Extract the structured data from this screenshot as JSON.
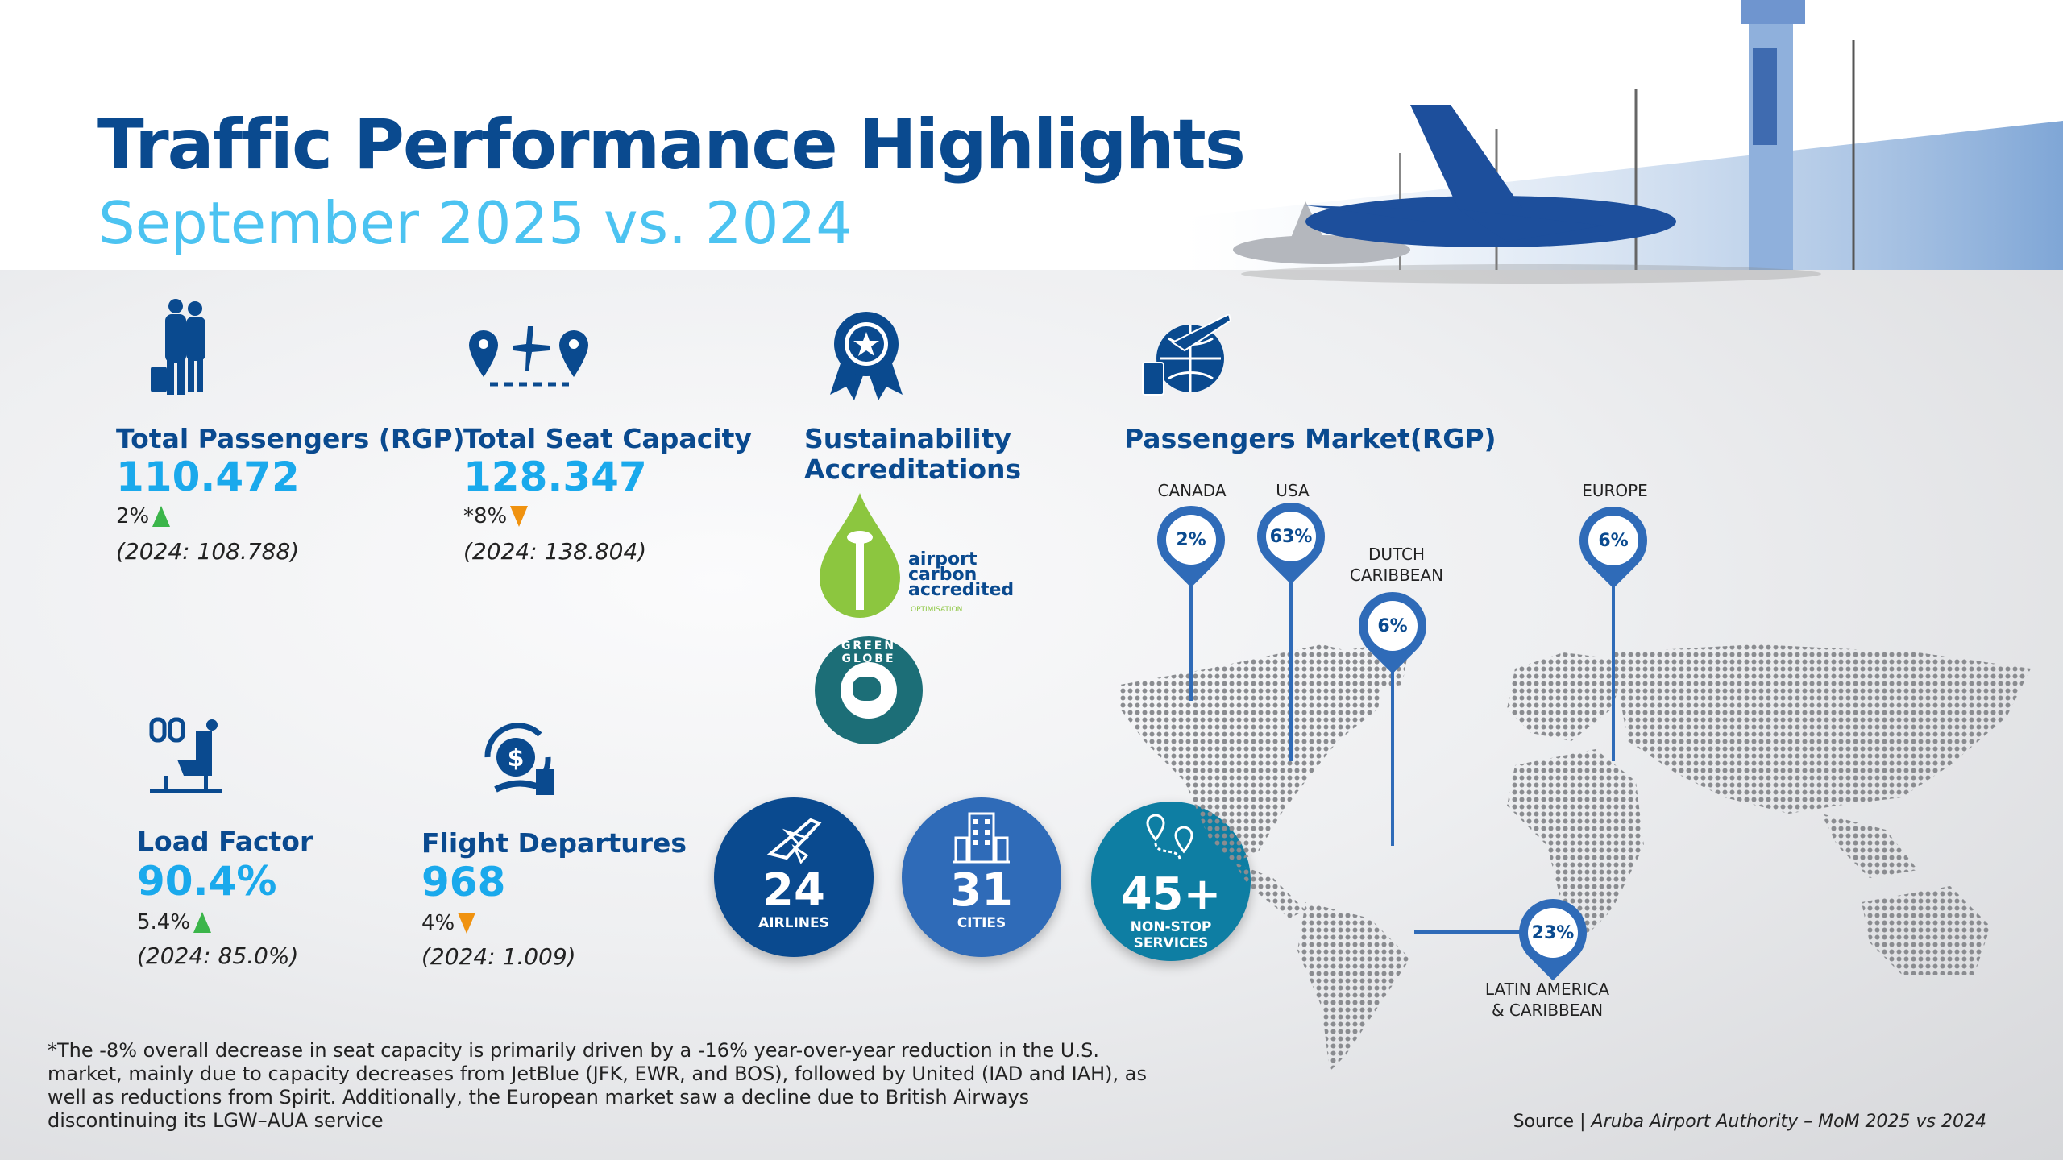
{
  "header": {
    "title": "Traffic Performance Highlights",
    "subtitle": "September 2025 vs. 2024"
  },
  "kpis": {
    "passengers": {
      "label": "Total Passengers (RGP)",
      "value": "110.472",
      "change": "2%",
      "trend": "up",
      "previous": "(2024: 108.788)",
      "icon": "travelers-icon"
    },
    "seats": {
      "label": "Total Seat Capacity",
      "value": "128.347",
      "change": "*8%",
      "trend": "down",
      "previous": "(2024: 138.804)",
      "icon": "route-plane-icon"
    },
    "load_factor": {
      "label": "Load Factor",
      "value": "90.4%",
      "change": "5.4%",
      "trend": "up",
      "previous": "(2024: 85.0%)",
      "icon": "seat-icon"
    },
    "departures": {
      "label": "Flight Departures",
      "value": "968",
      "change": "4%",
      "trend": "down",
      "previous": "(2024: 1.009)",
      "icon": "money-cycle-icon"
    }
  },
  "sustainability": {
    "label_line1": "Sustainability",
    "label_line2": "Accreditations",
    "logos": [
      {
        "name": "airport carbon accredited",
        "sub": "OPTIMISATION"
      },
      {
        "name": "GREEN GLOBE"
      }
    ]
  },
  "stats": [
    {
      "number": "24",
      "caption": "AIRLINES",
      "color": "#0a4a8f",
      "icon": "plane-icon"
    },
    {
      "number": "31",
      "caption": "CITIES",
      "color": "#2f6bb8",
      "icon": "city-icon"
    },
    {
      "number": "45+",
      "caption_line1": "NON-STOP",
      "caption_line2": "SERVICES",
      "color": "#0e7ea3",
      "icon": "route-pins-icon"
    }
  ],
  "market": {
    "label": "Passengers Market(RGP)",
    "regions": [
      {
        "name": "CANADA",
        "share": "2%"
      },
      {
        "name": "USA",
        "share": "63%"
      },
      {
        "name_line1": "DUTCH",
        "name_line2": "CARIBBEAN",
        "share": "6%"
      },
      {
        "name": "EUROPE",
        "share": "6%"
      },
      {
        "name_line1": "LATIN AMERICA",
        "name_line2": "& CARIBBEAN",
        "share": "23%"
      }
    ]
  },
  "footnote": "*The -8% overall decrease in seat capacity is primarily driven by a -16% year-over-year reduction in the U.S. market, mainly due to capacity decreases from JetBlue (JFK, EWR, and BOS), followed by United (IAD and IAH), as well as reductions from Spirit. Additionally, the European market saw a decline due to British Airways discontinuing its LGW–AUA service",
  "source": {
    "prefix": "Source | ",
    "text": "Aruba Airport Authority – MoM 2025 vs 2024"
  },
  "colors": {
    "navy": "#0a4a8f",
    "accent": "#1aa9ec",
    "up": "#3bb54a",
    "down": "#f0920f"
  }
}
